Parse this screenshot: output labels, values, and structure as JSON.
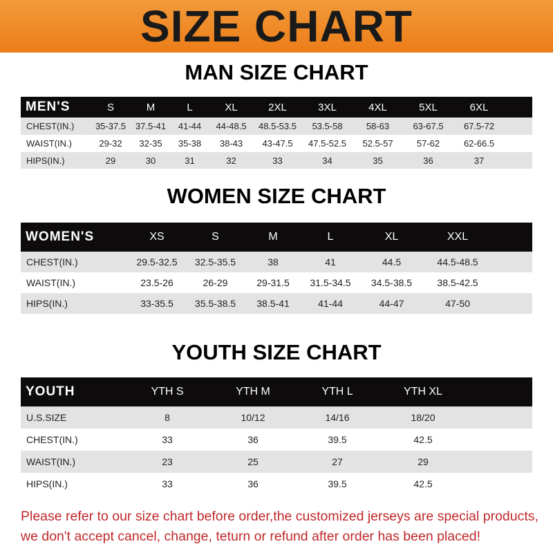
{
  "header": {
    "title": "SIZE CHART"
  },
  "men": {
    "title": "MAN SIZE CHART",
    "header": [
      "MEN'S",
      "S",
      "M",
      "L",
      "XL",
      "2XL",
      "3XL",
      "4XL",
      "5XL",
      "6XL"
    ],
    "rows": [
      [
        "CHEST(IN.)",
        "35-37.5",
        "37.5-41",
        "41-44",
        "44-48.5",
        "48.5-53.5",
        "53.5-58",
        "58-63",
        "63-67.5",
        "67.5-72"
      ],
      [
        "WAIST(IN.)",
        "29-32",
        "32-35",
        "35-38",
        "38-43",
        "43-47.5",
        "47.5-52.5",
        "52.5-57",
        "57-62",
        "62-66.5"
      ],
      [
        "HIPS(IN.)",
        "29",
        "30",
        "31",
        "32",
        "33",
        "34",
        "35",
        "36",
        "37"
      ]
    ]
  },
  "women": {
    "title": "WOMEN SIZE CHART",
    "header": [
      "WOMEN'S",
      "XS",
      "S",
      "M",
      "L",
      "XL",
      "XXL"
    ],
    "rows": [
      [
        "CHEST(IN.)",
        "29.5-32.5",
        "32.5-35.5",
        "38",
        "41",
        "44.5",
        "44.5-48.5"
      ],
      [
        "WAIST(IN.)",
        "23.5-26",
        "26-29",
        "29-31.5",
        "31.5-34.5",
        "34.5-38.5",
        "38.5-42.5"
      ],
      [
        "HIPS(IN.)",
        "33-35.5",
        "35.5-38.5",
        "38.5-41",
        "41-44",
        "44-47",
        "47-50"
      ]
    ]
  },
  "youth": {
    "title": "YOUTH SIZE CHART",
    "header": [
      "YOUTH",
      "YTH S",
      "YTH M",
      "YTH L",
      "YTH XL"
    ],
    "rows": [
      [
        "U.S.SIZE",
        "8",
        "10/12",
        "14/16",
        "18/20"
      ],
      [
        "CHEST(IN.)",
        "33",
        "36",
        "39.5",
        "42.5"
      ],
      [
        "WAIST(IN.)",
        "23",
        "25",
        "27",
        "29"
      ],
      [
        "HIPS(IN.)",
        "33",
        "36",
        "39.5",
        "42.5"
      ]
    ]
  },
  "footer": {
    "line1": "Please refer to our size chart before order,the customized jerseys are special products,",
    "line2": "we don't accept cancel, change, teturn or refund after order has been placed!"
  },
  "colors": {
    "banner": "#ec7d18",
    "header_row": "#0d0b0b",
    "stripe": "#e3e3e3",
    "note": "#c0282a"
  }
}
